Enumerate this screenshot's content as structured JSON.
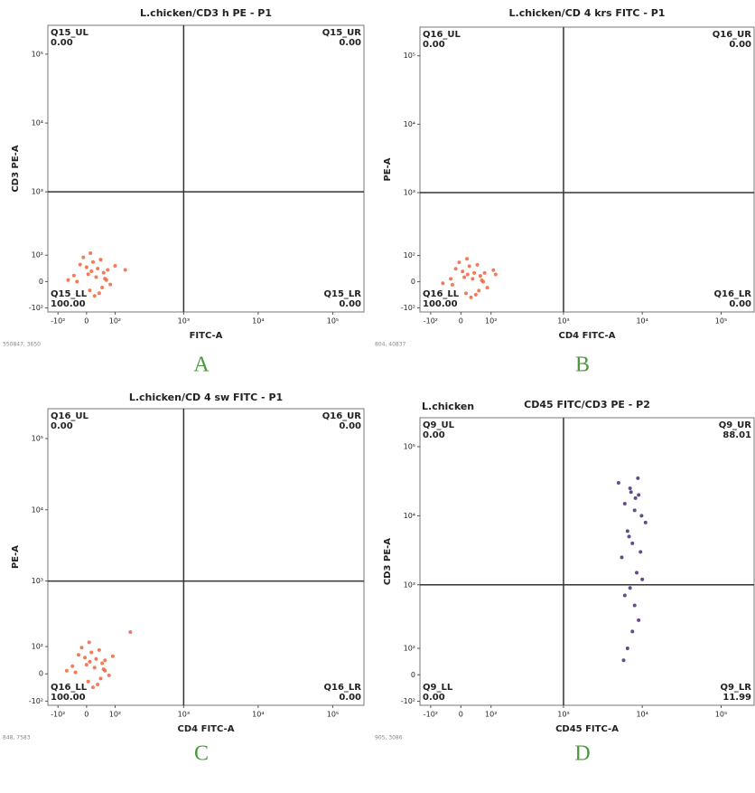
{
  "chart_data": [
    {
      "type": "scatter",
      "title": "L.chicken/CD3 h PE - P1",
      "x_label": "FITC-A",
      "y_label": "CD3 PE-A",
      "panel": "A",
      "corner_text": "550847, 3650",
      "scale": "biexponential",
      "color": "#f0643c",
      "xlim": [
        -150,
        262144
      ],
      "ylim": [
        -120,
        262144
      ],
      "xticks": [
        {
          "value": -100,
          "label": "-10²"
        },
        0,
        {
          "value": 100,
          "label": "10²"
        },
        {
          "value": 1000,
          "label": "10³"
        },
        {
          "value": 10000,
          "label": "10⁴"
        },
        {
          "value": 100000,
          "label": "10⁵"
        }
      ],
      "yticks": [
        {
          "value": -100,
          "label": "-10²"
        },
        0,
        {
          "value": 100,
          "label": "10²"
        },
        {
          "value": 1000,
          "label": "10³"
        },
        {
          "value": 10000,
          "label": "10⁴"
        },
        {
          "value": 100000,
          "label": "10⁵"
        }
      ],
      "gate": {
        "x": 1000,
        "y": 1000
      },
      "quadrants": {
        "names": [
          "Q15_UL",
          "Q15_UR",
          "Q15_LL",
          "Q15_LR"
        ],
        "labels": [
          "0.00",
          "0.00",
          "100.00",
          "0.00"
        ]
      },
      "x": [
        -40,
        10,
        35,
        60,
        -20,
        80,
        15,
        45,
        -60,
        25,
        5,
        70,
        -10,
        50,
        30,
        100,
        -30,
        20,
        55,
        40,
        0,
        65,
        12,
        150
      ],
      "y": [
        20,
        -30,
        45,
        10,
        60,
        -10,
        35,
        80,
        5,
        -50,
        25,
        40,
        90,
        -20,
        15,
        55,
        0,
        70,
        30,
        -40,
        50,
        5,
        110,
        40
      ]
    },
    {
      "type": "scatter",
      "title": "L.chicken/CD 4 krs FITC - P1",
      "x_label": "CD4 FITC-A",
      "y_label": "PE-A",
      "panel": "B",
      "corner_text": "804, 40837",
      "scale": "biexponential",
      "color": "#f0643c",
      "xlim": [
        -150,
        262144
      ],
      "ylim": [
        -120,
        262144
      ],
      "xticks": [
        {
          "value": -100,
          "label": "-10²"
        },
        0,
        {
          "value": 100,
          "label": "10²"
        },
        {
          "value": 1000,
          "label": "10³"
        },
        {
          "value": 10000,
          "label": "10⁴"
        },
        {
          "value": 100000,
          "label": "10⁵"
        }
      ],
      "yticks": [
        {
          "value": -100,
          "label": "-10²"
        },
        0,
        {
          "value": 100,
          "label": "10²"
        },
        {
          "value": 1000,
          "label": "10³"
        },
        {
          "value": 10000,
          "label": "10⁴"
        },
        {
          "value": 100000,
          "label": "10⁵"
        }
      ],
      "gate": {
        "x": 1000,
        "y": 1000
      },
      "quadrants": {
        "names": [
          "Q16_UL",
          "Q16_UR",
          "Q16_LL",
          "Q16_LR"
        ],
        "labels": [
          "0.00",
          "0.00",
          "100.00",
          "0.00"
        ]
      },
      "x": [
        -30,
        15,
        40,
        65,
        -15,
        85,
        20,
        50,
        -55,
        30,
        10,
        75,
        -5,
        55,
        35,
        110,
        -25,
        25,
        60,
        45,
        5,
        70,
        18,
        120
      ],
      "y": [
        10,
        -40,
        30,
        5,
        45,
        -20,
        25,
        60,
        -5,
        -55,
        15,
        30,
        70,
        -30,
        10,
        40,
        -10,
        55,
        20,
        -45,
        35,
        0,
        85,
        25
      ]
    },
    {
      "type": "scatter",
      "title": "L.chicken/CD 4 sw FITC - P1",
      "x_label": "CD4 FITC-A",
      "y_label": "PE-A",
      "panel": "C",
      "corner_text": "848, 7583",
      "scale": "biexponential",
      "color": "#f0643c",
      "xlim": [
        -150,
        262144
      ],
      "ylim": [
        -120,
        262144
      ],
      "xticks": [
        {
          "value": -100,
          "label": "-10²"
        },
        0,
        {
          "value": 100,
          "label": "10²"
        },
        {
          "value": 1000,
          "label": "10³"
        },
        {
          "value": 10000,
          "label": "10⁴"
        },
        {
          "value": 100000,
          "label": "10⁵"
        }
      ],
      "yticks": [
        {
          "value": -100,
          "label": "-10²"
        },
        0,
        {
          "value": 100,
          "label": "10²"
        },
        {
          "value": 1000,
          "label": "10³"
        },
        {
          "value": 10000,
          "label": "10⁴"
        },
        {
          "value": 100000,
          "label": "10⁵"
        }
      ],
      "gate": {
        "x": 1000,
        "y": 1000
      },
      "quadrants": {
        "names": [
          "Q16_UL",
          "Q16_UR",
          "Q16_LL",
          "Q16_LR"
        ],
        "labels": [
          "0.00",
          "0.00",
          "100.00",
          "0.00"
        ]
      },
      "x": [
        -45,
        5,
        30,
        55,
        -25,
        75,
        10,
        40,
        -65,
        20,
        0,
        60,
        -15,
        45,
        25,
        90,
        -35,
        15,
        50,
        35,
        -5,
        60,
        8,
        180
      ],
      "y": [
        25,
        -25,
        50,
        15,
        65,
        -5,
        40,
        85,
        10,
        -45,
        30,
        45,
        95,
        -15,
        20,
        60,
        5,
        75,
        35,
        -35,
        55,
        10,
        120,
        180
      ]
    },
    {
      "type": "scatter",
      "title": "CD45 FITC/CD3 PE - P2",
      "annotation": "L.chicken",
      "x_label": "CD45 FITC-A",
      "y_label": "CD3 PE-A",
      "panel": "D",
      "corner_text": "905, 3086",
      "scale": "biexponential",
      "color": "#4b2a78",
      "xlim": [
        -150,
        262144
      ],
      "ylim": [
        -120,
        262144
      ],
      "xticks": [
        {
          "value": -100,
          "label": "-10²"
        },
        0,
        {
          "value": 100,
          "label": "10²"
        },
        {
          "value": 1000,
          "label": "10³"
        },
        {
          "value": 10000,
          "label": "10⁴"
        },
        {
          "value": 100000,
          "label": "10⁵"
        }
      ],
      "yticks": [
        {
          "value": -100,
          "label": "-10²"
        },
        0,
        {
          "value": 100,
          "label": "10²"
        },
        {
          "value": 1000,
          "label": "10³"
        },
        {
          "value": 10000,
          "label": "10⁴"
        },
        {
          "value": 100000,
          "label": "10⁵"
        }
      ],
      "gate": {
        "x": 1000,
        "y": 1000
      },
      "quadrants": {
        "names": [
          "Q9_UL",
          "Q9_UR",
          "Q9_LL",
          "Q9_LR"
        ],
        "labels": [
          "0.00",
          "88.01",
          "0.00",
          "11.99"
        ]
      },
      "x": [
        5000,
        7000,
        9000,
        6000,
        8000,
        11000,
        6500,
        7500,
        9500,
        5500,
        8500,
        10000,
        7000,
        6000,
        8000,
        9000,
        7500,
        6500,
        5800,
        8200,
        7200,
        9800,
        6800,
        8800
      ],
      "y": [
        30000,
        25000,
        20000,
        15000,
        12000,
        8000,
        6000,
        4000,
        3000,
        2500,
        1500,
        1200,
        900,
        700,
        500,
        300,
        200,
        100,
        50,
        18000,
        22000,
        10000,
        5000,
        35000
      ]
    }
  ]
}
